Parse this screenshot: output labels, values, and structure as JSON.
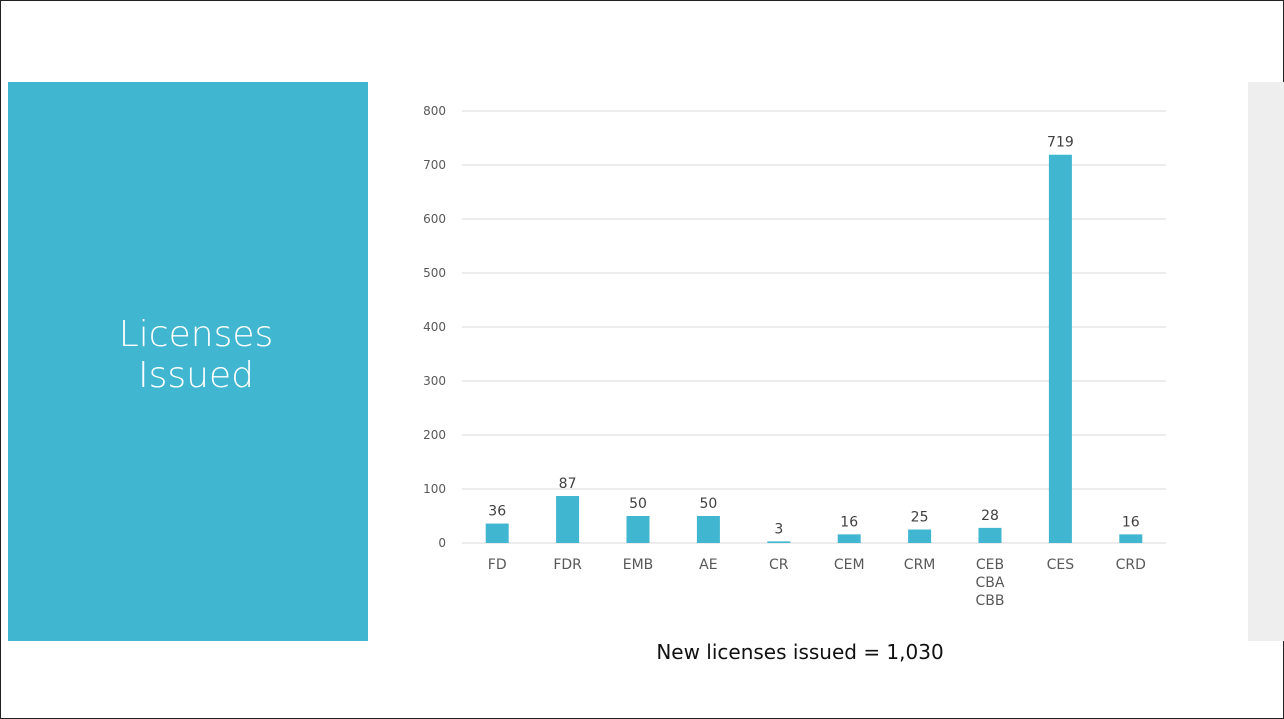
{
  "slide": {
    "title": "Licenses\nIssued",
    "caption": "New licenses issued = 1,030",
    "accent_color": "#41b6d1"
  },
  "chart_data": {
    "type": "bar",
    "categories": [
      "FD",
      "FDR",
      "EMB",
      "AE",
      "CR",
      "CEM",
      "CRM",
      "CEB\nCBA\nCBB",
      "CES",
      "CRD"
    ],
    "values": [
      36,
      87,
      50,
      50,
      3,
      16,
      25,
      28,
      719,
      16
    ],
    "title": "",
    "xlabel": "",
    "ylabel": "",
    "ylim": [
      0,
      800
    ],
    "yticks": [
      0,
      100,
      200,
      300,
      400,
      500,
      600,
      700,
      800
    ],
    "grid": true,
    "legend": "none",
    "data_labels": true,
    "bar_color": "#41b6d1"
  }
}
